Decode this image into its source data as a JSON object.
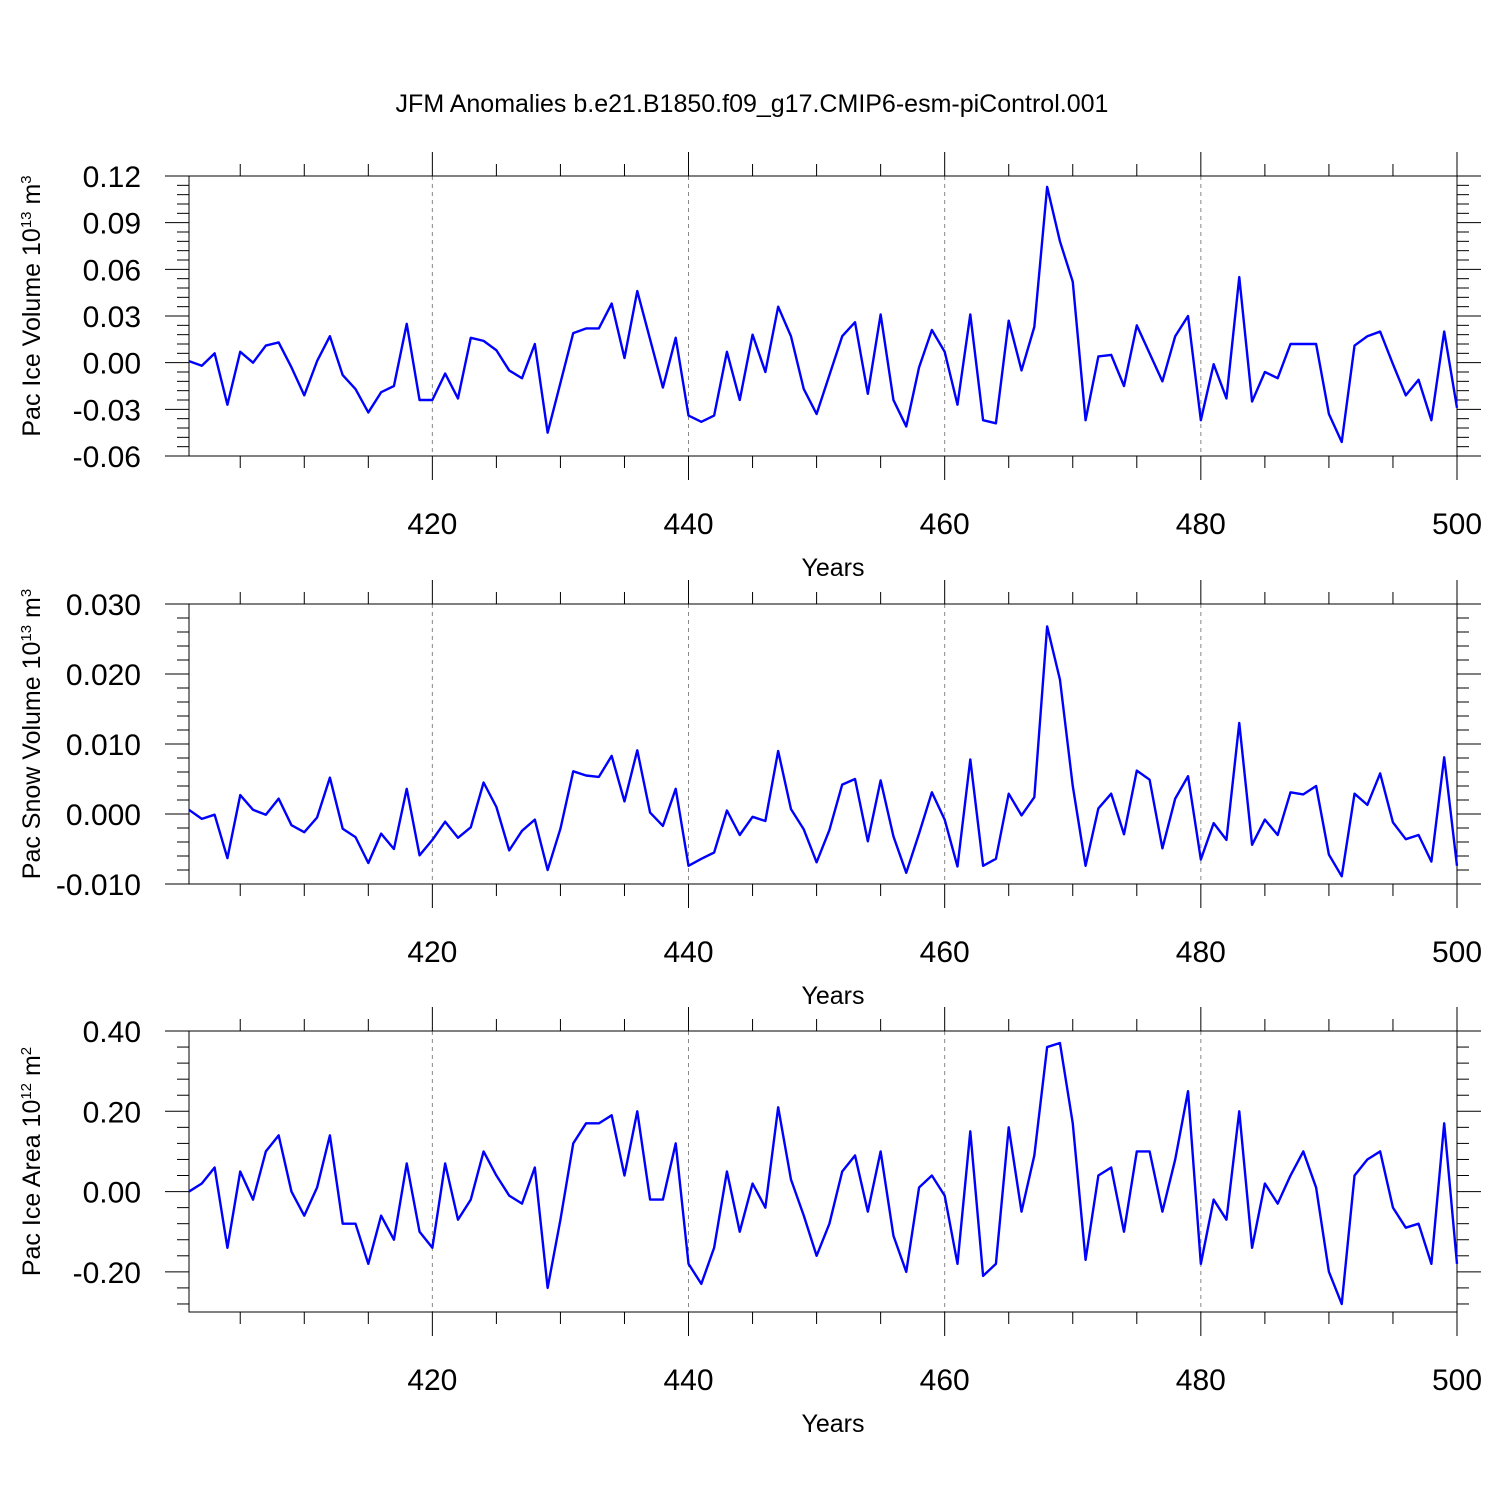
{
  "title": "JFM Anomalies b.e21.B1850.f09_g17.CMIP6-esm-piControl.001",
  "colors": {
    "series": "#0000ff",
    "grid": "#888888",
    "axes": "#000000"
  },
  "chart_data": [
    {
      "type": "line",
      "title": "JFM Anomalies b.e21.B1850.f09_g17.CMIP6-esm-piControl.001",
      "xlabel": "Years",
      "ylabel": "Pac Ice Volume 10",
      "ylabel_exp": "13",
      "ylabel_unit": "m",
      "ylabel_unit_exp": "3",
      "xlim": [
        401,
        500
      ],
      "ylim": [
        -0.06,
        0.12
      ],
      "xticks": [
        420,
        440,
        460,
        480,
        500
      ],
      "xtick_labels": [
        "420",
        "440",
        "460",
        "480",
        "500"
      ],
      "yticks": [
        -0.06,
        -0.03,
        0.0,
        0.03,
        0.06,
        0.09,
        0.12
      ],
      "ytick_labels": [
        "-0.06",
        "-0.03",
        "0.00",
        "0.03",
        "0.06",
        "0.09",
        "0.12"
      ],
      "grid": "vertical dashed at major x ticks",
      "x_start": 401,
      "series": [
        {
          "values": [
            0.001,
            -0.002,
            0.006,
            -0.027,
            0.007,
            0.0,
            0.011,
            0.013,
            -0.003,
            -0.021,
            0.001,
            0.017,
            -0.008,
            -0.017,
            -0.032,
            -0.019,
            -0.015,
            0.025,
            -0.024,
            -0.024,
            -0.007,
            -0.023,
            0.016,
            0.014,
            0.008,
            -0.005,
            -0.01,
            0.012,
            -0.045,
            -0.013,
            0.019,
            0.022,
            0.022,
            0.038,
            0.003,
            0.046,
            0.015,
            -0.016,
            0.016,
            -0.034,
            -0.038,
            -0.034,
            0.007,
            -0.024,
            0.018,
            -0.006,
            0.036,
            0.017,
            -0.017,
            -0.033,
            -0.008,
            0.017,
            0.026,
            -0.02,
            0.031,
            -0.024,
            -0.041,
            -0.003,
            0.021,
            0.007,
            -0.027,
            0.031,
            -0.037,
            -0.039,
            0.027,
            -0.005,
            0.023,
            0.113,
            0.078,
            0.052,
            -0.037,
            0.004,
            0.005,
            -0.015,
            0.024,
            0.006,
            -0.012,
            0.017,
            0.03,
            -0.037,
            -0.001,
            -0.023,
            0.055,
            -0.025,
            -0.006,
            -0.01,
            0.012,
            0.012,
            0.012,
            -0.033,
            -0.051,
            0.011,
            0.017,
            0.02,
            -0.001,
            -0.021,
            -0.011,
            -0.037,
            0.02,
            -0.029
          ]
        }
      ]
    },
    {
      "type": "line",
      "xlabel": "Years",
      "ylabel": "Pac Snow Volume 10",
      "ylabel_exp": "13",
      "ylabel_unit": "m",
      "ylabel_unit_exp": "3",
      "xlim": [
        401,
        500
      ],
      "ylim": [
        -0.01,
        0.03
      ],
      "xticks": [
        420,
        440,
        460,
        480,
        500
      ],
      "xtick_labels": [
        "420",
        "440",
        "460",
        "480",
        "500"
      ],
      "yticks": [
        -0.01,
        0.0,
        0.01,
        0.02,
        0.03
      ],
      "ytick_labels": [
        "-0.010",
        "0.000",
        "0.010",
        "0.020",
        "0.030"
      ],
      "grid": "vertical dashed at major x ticks",
      "x_start": 401,
      "series": [
        {
          "values": [
            0.0006,
            -0.0007,
            -0.0001,
            -0.0063,
            0.0027,
            0.0006,
            -0.0001,
            0.0022,
            -0.0016,
            -0.0026,
            -0.0005,
            0.0052,
            -0.0021,
            -0.0033,
            -0.007,
            -0.0028,
            -0.005,
            0.0036,
            -0.0059,
            -0.0037,
            -0.0011,
            -0.0034,
            -0.0019,
            0.0045,
            0.001,
            -0.0052,
            -0.0024,
            -0.0008,
            -0.008,
            -0.0021,
            0.0061,
            0.0055,
            0.0053,
            0.0083,
            0.0018,
            0.0091,
            0.0002,
            -0.0017,
            0.0036,
            -0.0074,
            -0.0064,
            -0.0055,
            0.0005,
            -0.003,
            -0.0004,
            -0.001,
            0.009,
            0.0007,
            -0.0022,
            -0.0069,
            -0.0023,
            0.0042,
            0.005,
            -0.0039,
            0.0048,
            -0.0032,
            -0.0084,
            -0.0028,
            0.0031,
            -0.0008,
            -0.0075,
            0.0078,
            -0.0074,
            -0.0064,
            0.0029,
            -0.0002,
            0.0024,
            0.0268,
            0.0192,
            0.004,
            -0.0074,
            0.0008,
            0.0029,
            -0.0029,
            0.0062,
            0.0049,
            -0.0049,
            0.0022,
            0.0054,
            -0.0065,
            -0.0013,
            -0.0037,
            0.013,
            -0.0044,
            -0.0008,
            -0.003,
            0.0031,
            0.0028,
            0.004,
            -0.0058,
            -0.0089,
            0.0029,
            0.0013,
            0.0058,
            -0.0012,
            -0.0036,
            -0.003,
            -0.0068,
            0.0081,
            -0.0074
          ]
        }
      ]
    },
    {
      "type": "line",
      "xlabel": "Years",
      "ylabel": "Pac Ice Area 10",
      "ylabel_exp": "12",
      "ylabel_unit": "m",
      "ylabel_unit_exp": "2",
      "xlim": [
        401,
        500
      ],
      "ylim": [
        -0.3,
        0.4
      ],
      "xticks": [
        420,
        440,
        460,
        480,
        500
      ],
      "xtick_labels": [
        "420",
        "440",
        "460",
        "480",
        "500"
      ],
      "yticks": [
        -0.2,
        0.0,
        0.2,
        0.4
      ],
      "ytick_labels": [
        "-0.20",
        "0.00",
        "0.20",
        "0.40"
      ],
      "grid": "vertical dashed at major x ticks",
      "x_start": 401,
      "series": [
        {
          "values": [
            0.0,
            0.02,
            0.06,
            -0.14,
            0.05,
            -0.02,
            0.1,
            0.14,
            0.0,
            -0.06,
            0.01,
            0.14,
            -0.08,
            -0.08,
            -0.18,
            -0.06,
            -0.12,
            0.07,
            -0.1,
            -0.14,
            0.07,
            -0.07,
            -0.02,
            0.1,
            0.04,
            -0.01,
            -0.03,
            0.06,
            -0.24,
            -0.07,
            0.12,
            0.17,
            0.17,
            0.19,
            0.04,
            0.2,
            -0.02,
            -0.02,
            0.12,
            -0.18,
            -0.23,
            -0.14,
            0.05,
            -0.1,
            0.02,
            -0.04,
            0.21,
            0.03,
            -0.06,
            -0.16,
            -0.08,
            0.05,
            0.09,
            -0.05,
            0.1,
            -0.11,
            -0.2,
            0.01,
            0.04,
            -0.01,
            -0.18,
            0.15,
            -0.21,
            -0.18,
            0.16,
            -0.05,
            0.09,
            0.36,
            0.37,
            0.17,
            -0.17,
            0.04,
            0.06,
            -0.1,
            0.1,
            0.1,
            -0.05,
            0.08,
            0.25,
            -0.18,
            -0.02,
            -0.07,
            0.2,
            -0.14,
            0.02,
            -0.03,
            0.04,
            0.1,
            0.01,
            -0.2,
            -0.28,
            0.04,
            0.08,
            0.1,
            -0.04,
            -0.09,
            -0.08,
            -0.18,
            0.17,
            -0.18
          ]
        }
      ]
    }
  ]
}
